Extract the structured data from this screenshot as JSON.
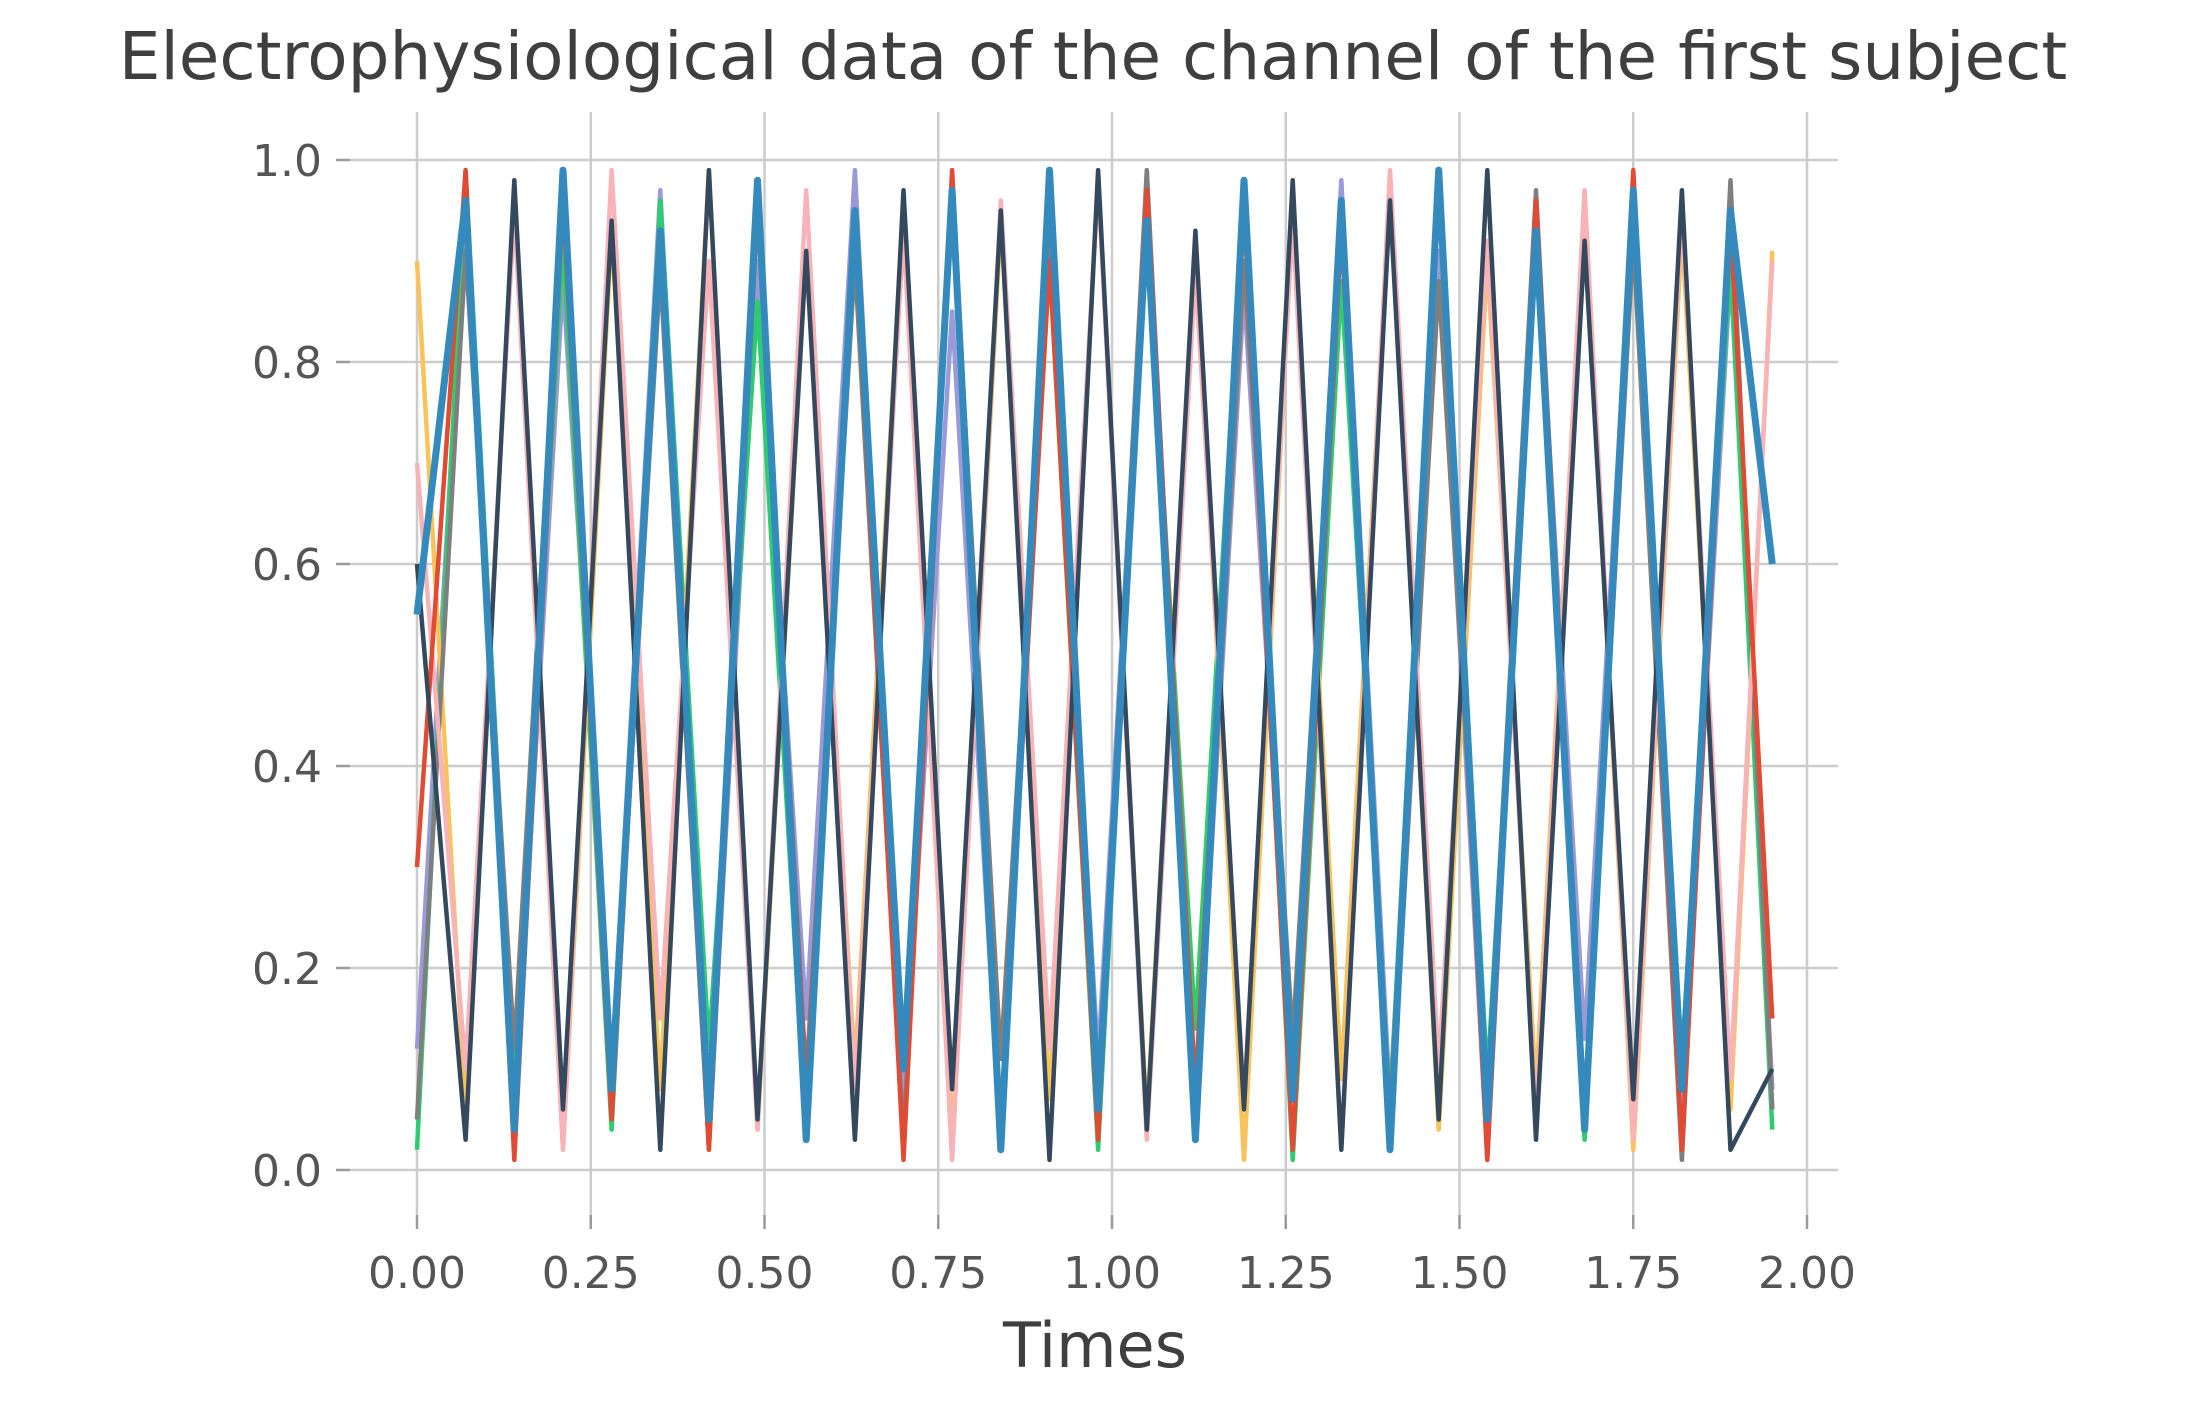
{
  "chart_data": {
    "type": "line",
    "title": "Electrophysiological data of the channel of the first subject",
    "xlabel": "Times",
    "ylabel": "",
    "xlim": [
      0.0,
      1.96
    ],
    "ylim": [
      0.0,
      1.0
    ],
    "x_ticks": [
      "0.00",
      "0.25",
      "0.50",
      "0.75",
      "1.00",
      "1.25",
      "1.50",
      "1.75",
      "2.00"
    ],
    "x_tick_values": [
      0.0,
      0.25,
      0.5,
      0.75,
      1.0,
      1.25,
      1.5,
      1.75,
      2.0
    ],
    "y_ticks": [
      "0.0",
      "0.2",
      "0.4",
      "0.6",
      "0.8",
      "1.0"
    ],
    "y_tick_values": [
      0.0,
      0.2,
      0.4,
      0.6,
      0.8,
      1.0
    ],
    "grid": true,
    "legend": "none",
    "series_colors": [
      "#9a9ad8",
      "#2ecc71",
      "#f7c35a",
      "#7f7f7f",
      "#f7b3b8",
      "#e24a33",
      "#34495e",
      "#348abd"
    ],
    "series": [
      {
        "x": [
          0.0,
          0.07,
          0.14,
          0.21,
          0.28,
          0.35,
          0.42,
          0.49,
          0.56,
          0.63,
          0.7,
          0.77,
          0.84,
          0.91,
          0.98,
          1.05,
          1.12,
          1.19,
          1.26,
          1.33,
          1.4,
          1.47,
          1.54,
          1.61,
          1.68,
          1.75,
          1.82,
          1.89,
          1.95
        ],
        "y": [
          0.12,
          0.95,
          0.05,
          0.88,
          0.1,
          0.97,
          0.03,
          0.9,
          0.15,
          0.99,
          0.06,
          0.85,
          0.02,
          0.93,
          0.11,
          0.96,
          0.04,
          0.87,
          0.09,
          0.98,
          0.07,
          0.91,
          0.01,
          0.94,
          0.13,
          0.97,
          0.05,
          0.89,
          0.08
        ]
      },
      {
        "x": [
          0.0,
          0.07,
          0.14,
          0.21,
          0.28,
          0.35,
          0.42,
          0.49,
          0.56,
          0.63,
          0.7,
          0.77,
          0.84,
          0.91,
          0.98,
          1.05,
          1.12,
          1.19,
          1.26,
          1.33,
          1.4,
          1.47,
          1.54,
          1.61,
          1.68,
          1.75,
          1.82,
          1.89,
          1.95
        ],
        "y": [
          0.02,
          0.99,
          0.08,
          0.92,
          0.04,
          0.96,
          0.12,
          0.86,
          0.03,
          0.95,
          0.1,
          0.98,
          0.05,
          0.9,
          0.02,
          0.94,
          0.14,
          0.97,
          0.01,
          0.88,
          0.06,
          0.99,
          0.09,
          0.92,
          0.03,
          0.95,
          0.11,
          0.9,
          0.04
        ]
      },
      {
        "x": [
          0.0,
          0.07,
          0.14,
          0.21,
          0.28,
          0.35,
          0.42,
          0.49,
          0.56,
          0.63,
          0.7,
          0.77,
          0.84,
          0.91,
          0.98,
          1.05,
          1.12,
          1.19,
          1.26,
          1.33,
          1.4,
          1.47,
          1.54,
          1.61,
          1.68,
          1.75,
          1.82,
          1.89,
          1.95
        ],
        "y": [
          0.9,
          0.06,
          0.97,
          0.02,
          0.93,
          0.08,
          0.99,
          0.04,
          0.91,
          0.1,
          0.96,
          0.03,
          0.94,
          0.07,
          0.98,
          0.05,
          0.92,
          0.01,
          0.95,
          0.09,
          0.97,
          0.04,
          0.9,
          0.08,
          0.96,
          0.02,
          0.93,
          0.06,
          0.91
        ]
      },
      {
        "x": [
          0.0,
          0.07,
          0.14,
          0.21,
          0.28,
          0.35,
          0.42,
          0.49,
          0.56,
          0.63,
          0.7,
          0.77,
          0.84,
          0.91,
          0.98,
          1.05,
          1.12,
          1.19,
          1.26,
          1.33,
          1.4,
          1.47,
          1.54,
          1.61,
          1.68,
          1.75,
          1.82,
          1.89,
          1.95
        ],
        "y": [
          0.05,
          0.91,
          0.12,
          0.98,
          0.07,
          0.89,
          0.02,
          0.95,
          0.09,
          0.9,
          0.03,
          0.97,
          0.11,
          0.92,
          0.06,
          0.99,
          0.04,
          0.9,
          0.13,
          0.95,
          0.02,
          0.88,
          0.07,
          0.97,
          0.05,
          0.92,
          0.01,
          0.98,
          0.06
        ]
      },
      {
        "x": [
          0.0,
          0.07,
          0.14,
          0.21,
          0.28,
          0.35,
          0.42,
          0.49,
          0.56,
          0.63,
          0.7,
          0.77,
          0.84,
          0.91,
          0.98,
          1.05,
          1.12,
          1.19,
          1.26,
          1.33,
          1.4,
          1.47,
          1.54,
          1.61,
          1.68,
          1.75,
          1.82,
          1.89,
          1.95
        ],
        "y": [
          0.7,
          0.1,
          0.95,
          0.02,
          0.99,
          0.15,
          0.9,
          0.04,
          0.97,
          0.08,
          0.93,
          0.01,
          0.96,
          0.12,
          0.98,
          0.03,
          0.89,
          0.07,
          0.94,
          0.02,
          0.99,
          0.1,
          0.92,
          0.05,
          0.97,
          0.03,
          0.95,
          0.09,
          0.9
        ]
      },
      {
        "x": [
          0.0,
          0.07,
          0.14,
          0.21,
          0.28,
          0.35,
          0.42,
          0.49,
          0.56,
          0.63,
          0.7,
          0.77,
          0.84,
          0.91,
          0.98,
          1.05,
          1.12,
          1.19,
          1.26,
          1.33,
          1.4,
          1.47,
          1.54,
          1.61,
          1.68,
          1.75,
          1.82,
          1.89,
          1.95
        ],
        "y": [
          0.3,
          0.99,
          0.01,
          0.96,
          0.05,
          0.92,
          0.02,
          0.98,
          0.07,
          0.94,
          0.01,
          0.99,
          0.04,
          0.9,
          0.03,
          0.97,
          0.08,
          0.95,
          0.02,
          0.93,
          0.05,
          0.98,
          0.01,
          0.96,
          0.06,
          0.99,
          0.02,
          0.94,
          0.15
        ]
      },
      {
        "x": [
          0.0,
          0.07,
          0.14,
          0.21,
          0.28,
          0.35,
          0.42,
          0.49,
          0.56,
          0.63,
          0.7,
          0.77,
          0.84,
          0.91,
          0.98,
          1.05,
          1.12,
          1.19,
          1.26,
          1.33,
          1.4,
          1.47,
          1.54,
          1.61,
          1.68,
          1.75,
          1.82,
          1.89,
          1.95
        ],
        "y": [
          0.6,
          0.03,
          0.98,
          0.06,
          0.94,
          0.02,
          0.99,
          0.05,
          0.91,
          0.03,
          0.97,
          0.08,
          0.95,
          0.01,
          0.99,
          0.04,
          0.93,
          0.06,
          0.98,
          0.02,
          0.96,
          0.05,
          0.99,
          0.03,
          0.92,
          0.07,
          0.97,
          0.02,
          0.1
        ]
      },
      {
        "x": [
          0.0,
          0.07,
          0.14,
          0.21,
          0.28,
          0.35,
          0.42,
          0.49,
          0.56,
          0.63,
          0.7,
          0.77,
          0.84,
          0.91,
          0.98,
          1.05,
          1.12,
          1.19,
          1.26,
          1.33,
          1.4,
          1.47,
          1.54,
          1.61,
          1.68,
          1.75,
          1.82,
          1.89,
          1.95
        ],
        "y": [
          0.55,
          0.96,
          0.04,
          0.99,
          0.08,
          0.93,
          0.05,
          0.98,
          0.03,
          0.95,
          0.1,
          0.97,
          0.02,
          0.99,
          0.06,
          0.94,
          0.03,
          0.98,
          0.07,
          0.96,
          0.02,
          0.99,
          0.05,
          0.93,
          0.04,
          0.97,
          0.08,
          0.95,
          0.6
        ]
      }
    ]
  }
}
